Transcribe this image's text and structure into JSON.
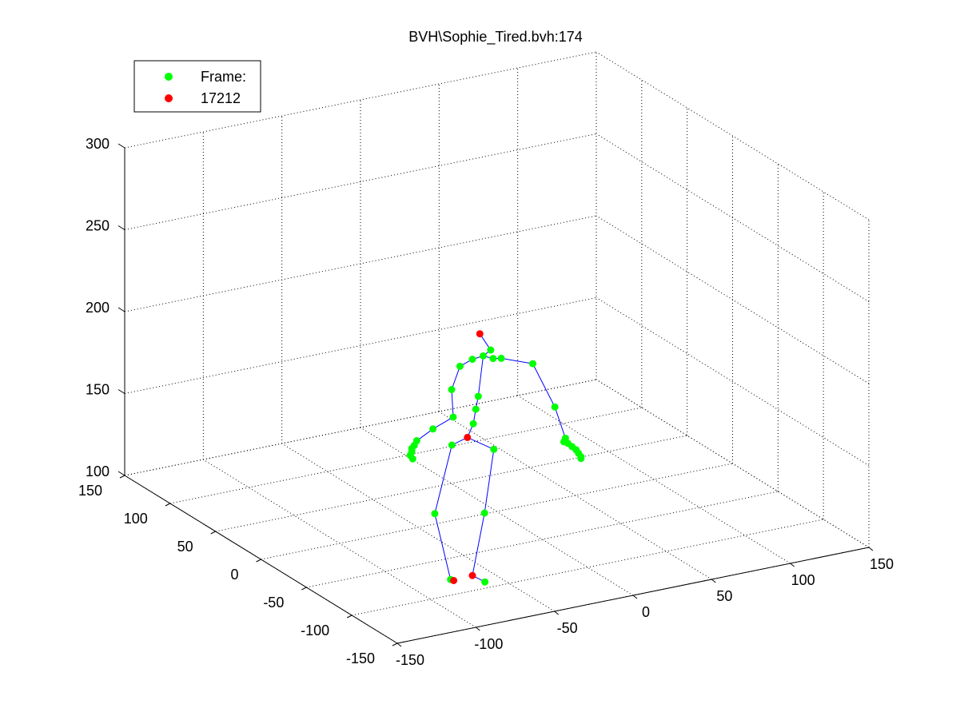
{
  "chart_data": {
    "type": "scatter",
    "title": "BVH\\Sophie_Tired.bvh:174",
    "xlabel": "",
    "ylabel": "",
    "zlabel": "",
    "axes": {
      "x": {
        "range": [
          -150,
          150
        ],
        "ticks": [
          -150,
          -100,
          -50,
          0,
          50,
          100,
          150
        ]
      },
      "y": {
        "range": [
          -150,
          150
        ],
        "ticks": [
          -150,
          -100,
          -50,
          0,
          50,
          100,
          150
        ]
      },
      "z": {
        "range": [
          100,
          300
        ],
        "ticks": [
          100,
          150,
          200,
          250,
          300
        ]
      }
    },
    "grid": true,
    "legend": {
      "position": "top-left",
      "entries": [
        {
          "label": "Frame:",
          "color": "#00ff00"
        },
        {
          "label": "17212",
          "color": "#ff0000"
        }
      ]
    },
    "joint_color": "#00ff00",
    "marker_color": "#ff0000",
    "bone_color": "#0000ff",
    "joints": [
      {
        "id": "hips",
        "x": -10,
        "y": 15,
        "z": 142,
        "kind": "marker"
      },
      {
        "id": "spine",
        "x": -8,
        "y": 12,
        "z": 151
      },
      {
        "id": "spine1",
        "x": -7,
        "y": 11,
        "z": 160
      },
      {
        "id": "spine2",
        "x": -6,
        "y": 10,
        "z": 168
      },
      {
        "id": "neck",
        "x": -4,
        "y": 8,
        "z": 193
      },
      {
        "id": "head",
        "x": -1,
        "y": 5,
        "z": 197
      },
      {
        "id": "head_top",
        "x": -5,
        "y": 10,
        "z": 206,
        "kind": "marker"
      },
      {
        "id": "l_collar",
        "x": -8,
        "y": 13,
        "z": 190
      },
      {
        "id": "l_shoulder",
        "x": -13,
        "y": 18,
        "z": 185
      },
      {
        "id": "l_upper_arm",
        "x": -16,
        "y": 22,
        "z": 170
      },
      {
        "id": "l_elbow",
        "x": -15,
        "y": 22,
        "z": 153
      },
      {
        "id": "l_forearm",
        "x": -25,
        "y": 27,
        "z": 146
      },
      {
        "id": "l_wrist",
        "x": -33,
        "y": 31,
        "z": 139
      },
      {
        "id": "l_hand",
        "x": -34,
        "y": 32,
        "z": 136
      },
      {
        "id": "l_finger1",
        "x": -35,
        "y": 33,
        "z": 134
      },
      {
        "id": "l_finger2",
        "x": -35,
        "y": 33,
        "z": 132
      },
      {
        "id": "l_finger3",
        "x": -36,
        "y": 33,
        "z": 130
      },
      {
        "id": "l_finger4",
        "x": -35,
        "y": 32,
        "z": 128
      },
      {
        "id": "r_collar",
        "x": 0,
        "y": 4,
        "z": 192
      },
      {
        "id": "r_shoulder",
        "x": 4,
        "y": 2,
        "z": 192
      },
      {
        "id": "r_upper_arm",
        "x": 20,
        "y": -5,
        "z": 188
      },
      {
        "id": "r_elbow",
        "x": 30,
        "y": -12,
        "z": 162
      },
      {
        "id": "r_wrist",
        "x": 35,
        "y": -15,
        "z": 143
      },
      {
        "id": "r_hand",
        "x": 34,
        "y": -15,
        "z": 141
      },
      {
        "id": "r_finger1",
        "x": 36,
        "y": -16,
        "z": 140
      },
      {
        "id": "r_finger2",
        "x": 38,
        "y": -17,
        "z": 138
      },
      {
        "id": "r_finger3",
        "x": 40,
        "y": -18,
        "z": 136
      },
      {
        "id": "r_finger4",
        "x": 41,
        "y": -19,
        "z": 134
      },
      {
        "id": "r_finger5",
        "x": 42,
        "y": -20,
        "z": 132
      },
      {
        "id": "r_finger6",
        "x": 42,
        "y": -20,
        "z": 131
      },
      {
        "id": "l_hip",
        "x": -17,
        "y": 20,
        "z": 137
      },
      {
        "id": "l_knee",
        "x": -25,
        "y": 25,
        "z": 95
      },
      {
        "id": "l_ankle",
        "x": -19,
        "y": 18,
        "z": 56
      },
      {
        "id": "l_heel",
        "x": -17,
        "y": 18,
        "z": 55,
        "kind": "marker"
      },
      {
        "id": "r_hip",
        "x": 1,
        "y": 5,
        "z": 136
      },
      {
        "id": "r_knee",
        "x": -2,
        "y": 10,
        "z": 96
      },
      {
        "id": "r_ankle",
        "x": -8,
        "y": 13,
        "z": 58,
        "kind": "marker"
      },
      {
        "id": "r_toe",
        "x": -7,
        "y": 1,
        "z": 58
      }
    ],
    "bones": [
      [
        "hips",
        "spine"
      ],
      [
        "spine",
        "spine1"
      ],
      [
        "spine1",
        "spine2"
      ],
      [
        "spine2",
        "neck"
      ],
      [
        "neck",
        "head"
      ],
      [
        "head",
        "head_top"
      ],
      [
        "neck",
        "l_collar"
      ],
      [
        "l_collar",
        "l_shoulder"
      ],
      [
        "l_shoulder",
        "l_upper_arm"
      ],
      [
        "l_upper_arm",
        "l_elbow"
      ],
      [
        "l_elbow",
        "l_forearm"
      ],
      [
        "l_forearm",
        "l_wrist"
      ],
      [
        "l_wrist",
        "l_hand"
      ],
      [
        "l_hand",
        "l_finger1"
      ],
      [
        "l_finger1",
        "l_finger2"
      ],
      [
        "l_finger2",
        "l_finger3"
      ],
      [
        "l_finger3",
        "l_finger4"
      ],
      [
        "neck",
        "r_collar"
      ],
      [
        "r_collar",
        "r_shoulder"
      ],
      [
        "r_shoulder",
        "r_upper_arm"
      ],
      [
        "r_upper_arm",
        "r_elbow"
      ],
      [
        "r_elbow",
        "r_wrist"
      ],
      [
        "r_wrist",
        "r_hand"
      ],
      [
        "r_hand",
        "r_finger1"
      ],
      [
        "r_finger1",
        "r_finger2"
      ],
      [
        "r_finger2",
        "r_finger3"
      ],
      [
        "r_finger3",
        "r_finger4"
      ],
      [
        "r_finger4",
        "r_finger5"
      ],
      [
        "r_finger5",
        "r_finger6"
      ],
      [
        "hips",
        "l_hip"
      ],
      [
        "l_hip",
        "l_knee"
      ],
      [
        "l_knee",
        "l_ankle"
      ],
      [
        "l_ankle",
        "l_heel"
      ],
      [
        "hips",
        "r_hip"
      ],
      [
        "r_hip",
        "r_knee"
      ],
      [
        "r_knee",
        "r_ankle"
      ],
      [
        "r_ankle",
        "r_toe"
      ]
    ]
  }
}
